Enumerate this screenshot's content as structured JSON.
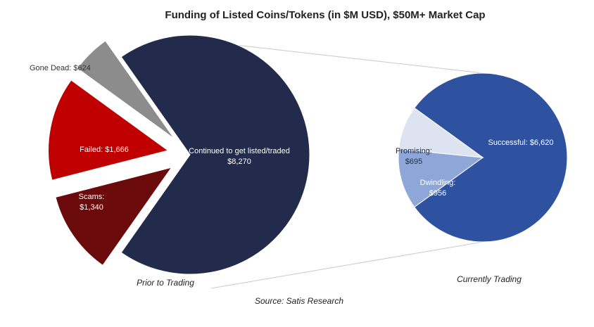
{
  "chart_data": [
    {
      "type": "pie",
      "title": "Funding of Listed Coins/Tokens (in $M USD), $50M+ Market Cap",
      "caption": "Prior to Trading",
      "slices": [
        {
          "name": "Continued to get listed/traded",
          "value": 8270,
          "label": "Continued to get listed/traded",
          "value_label": "$8,270",
          "color": "#232b4d"
        },
        {
          "name": "Scams",
          "value": 1340,
          "label": "Scams:",
          "value_label": "$1,340",
          "color": "#6b0a0a"
        },
        {
          "name": "Failed",
          "value": 1666,
          "label": "Failed: $1,666",
          "value_label": "",
          "color": "#c00000"
        },
        {
          "name": "Gone Dead",
          "value": 624,
          "label": "Gone Dead: $624",
          "value_label": "",
          "color": "#8c8c8c"
        }
      ]
    },
    {
      "type": "pie",
      "caption": "Currently Trading",
      "slices": [
        {
          "name": "Successful",
          "value": 6620,
          "label": "Successful: $6,620",
          "value_label": "",
          "color": "#2f52a0"
        },
        {
          "name": "Dwindling",
          "value": 956,
          "label": "Dwindling:",
          "value_label": "$956",
          "color": "#8fa7d8"
        },
        {
          "name": "Promising",
          "value": 695,
          "label": "Promising:",
          "value_label": "$695",
          "color": "#dde3f0"
        }
      ]
    }
  ],
  "source": "Source: Satis Research"
}
